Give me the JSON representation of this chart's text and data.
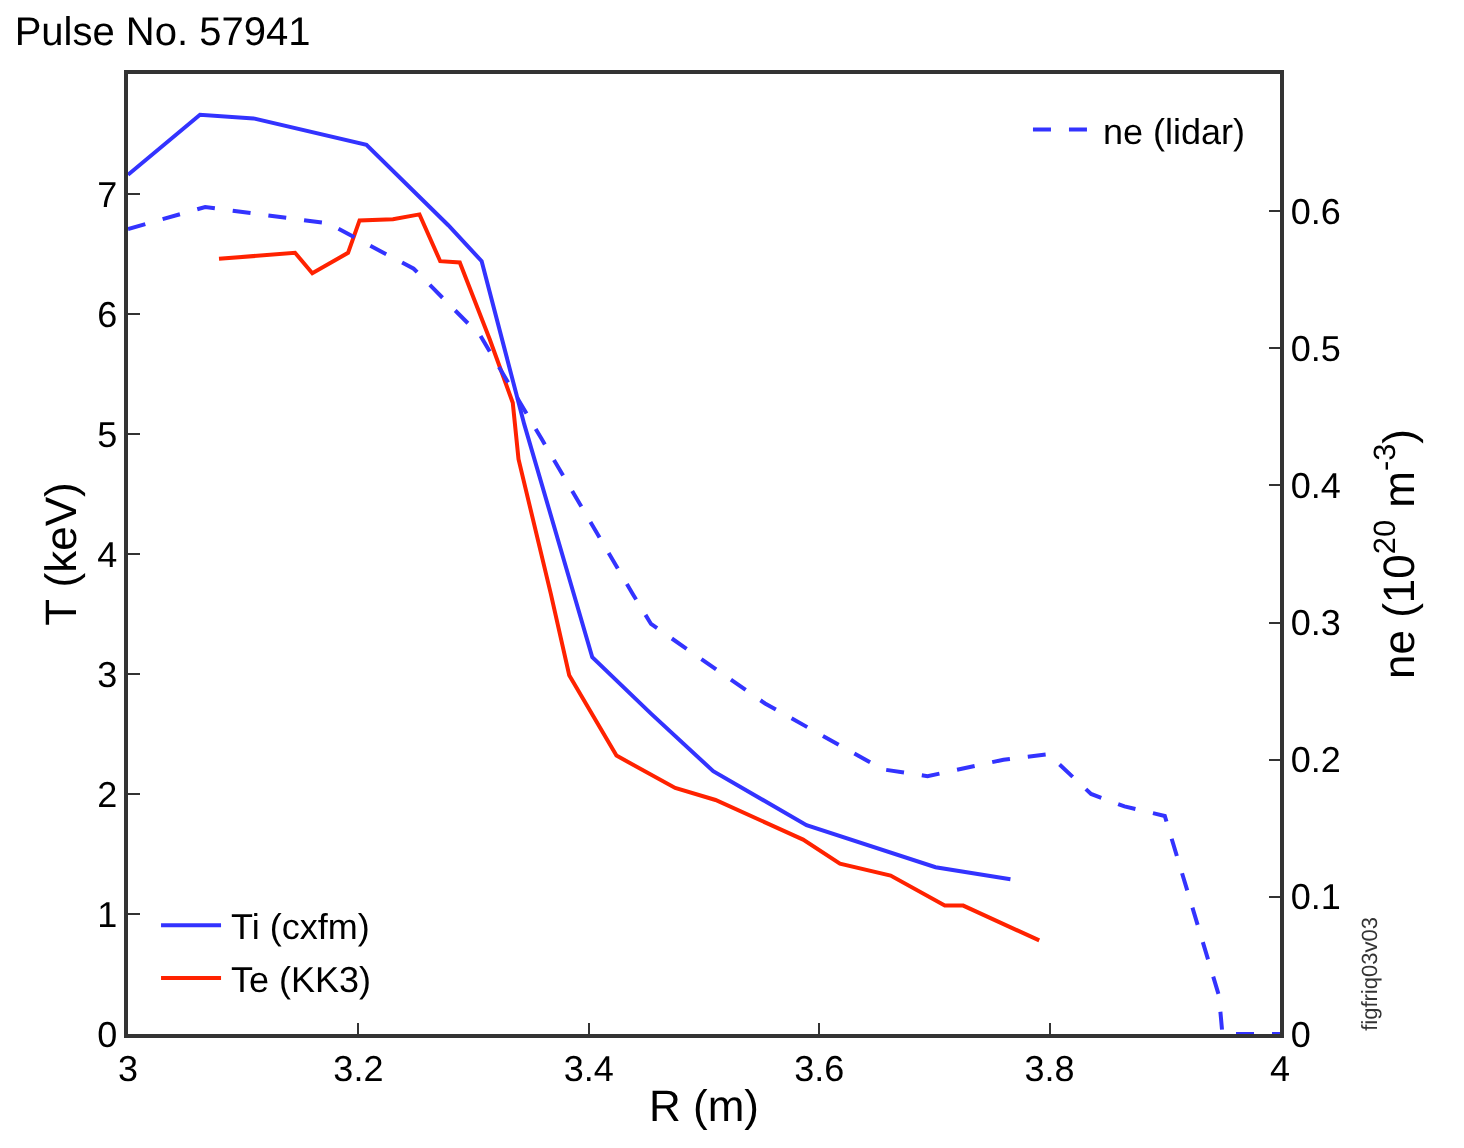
{
  "chart_data": {
    "type": "line",
    "title": "Pulse No. 57941",
    "xlabel": "R (m)",
    "ylabel": "T (keV)",
    "y2label": "ne (10$^{20}$ m$^{-3}$)",
    "xlim": [
      3,
      4
    ],
    "xticks": [
      3,
      3.2,
      3.4,
      3.6,
      3.8,
      4
    ],
    "ylim": [
      0,
      8
    ],
    "yticks": [
      0,
      1,
      2,
      3,
      4,
      5,
      6,
      7
    ],
    "y2lim": [
      0,
      0.7
    ],
    "y2ticks": [
      0,
      0.1,
      0.2,
      0.3,
      0.4,
      0.5,
      0.6
    ],
    "legend": [
      "bottom left",
      "top right"
    ],
    "marker": "none",
    "annotations": [
      "figfriq03v03"
    ],
    "series": [
      {
        "name": "Ti (cxfm)",
        "color": "#3333ff",
        "line_style": "solid",
        "x": [
          3.0,
          3.0625,
          3.109,
          3.207,
          3.278,
          3.307,
          3.344,
          3.403,
          3.454,
          3.508,
          3.589,
          3.701,
          3.766
        ],
        "values": [
          7.16,
          7.66,
          7.63,
          7.41,
          6.74,
          6.44,
          5.08,
          3.14,
          2.67,
          2.19,
          1.74,
          1.39,
          1.29
        ]
      },
      {
        "name": "Te (KK3)",
        "color": "#ff2200",
        "line_style": "solid",
        "x": [
          3.079,
          3.145,
          3.16,
          3.191,
          3.201,
          3.23,
          3.253,
          3.271,
          3.288,
          3.314,
          3.334,
          3.339,
          3.367,
          3.383,
          3.424,
          3.475,
          3.51,
          3.586,
          3.618,
          3.662,
          3.709,
          3.725,
          3.791
        ],
        "values": [
          6.46,
          6.51,
          6.34,
          6.51,
          6.78,
          6.79,
          6.83,
          6.44,
          6.43,
          5.79,
          5.26,
          4.79,
          3.67,
          2.99,
          2.32,
          2.05,
          1.95,
          1.62,
          1.42,
          1.32,
          1.07,
          1.07,
          0.78
        ]
      },
      {
        "name": "ne (lidar)",
        "color": "#3333ff",
        "line_style": "dashed",
        "axis": "y2",
        "x": [
          3.0,
          3.067,
          3.174,
          3.248,
          3.306,
          3.359,
          3.438,
          3.454,
          3.553,
          3.655,
          3.694,
          3.76,
          3.799,
          3.836,
          3.865,
          3.9,
          3.947,
          3.95,
          4.0
        ],
        "values": [
          0.587,
          0.603,
          0.591,
          0.558,
          0.509,
          0.434,
          0.321,
          0.299,
          0.241,
          0.193,
          0.188,
          0.2,
          0.204,
          0.175,
          0.166,
          0.159,
          0.028,
          0,
          0
        ]
      }
    ]
  }
}
